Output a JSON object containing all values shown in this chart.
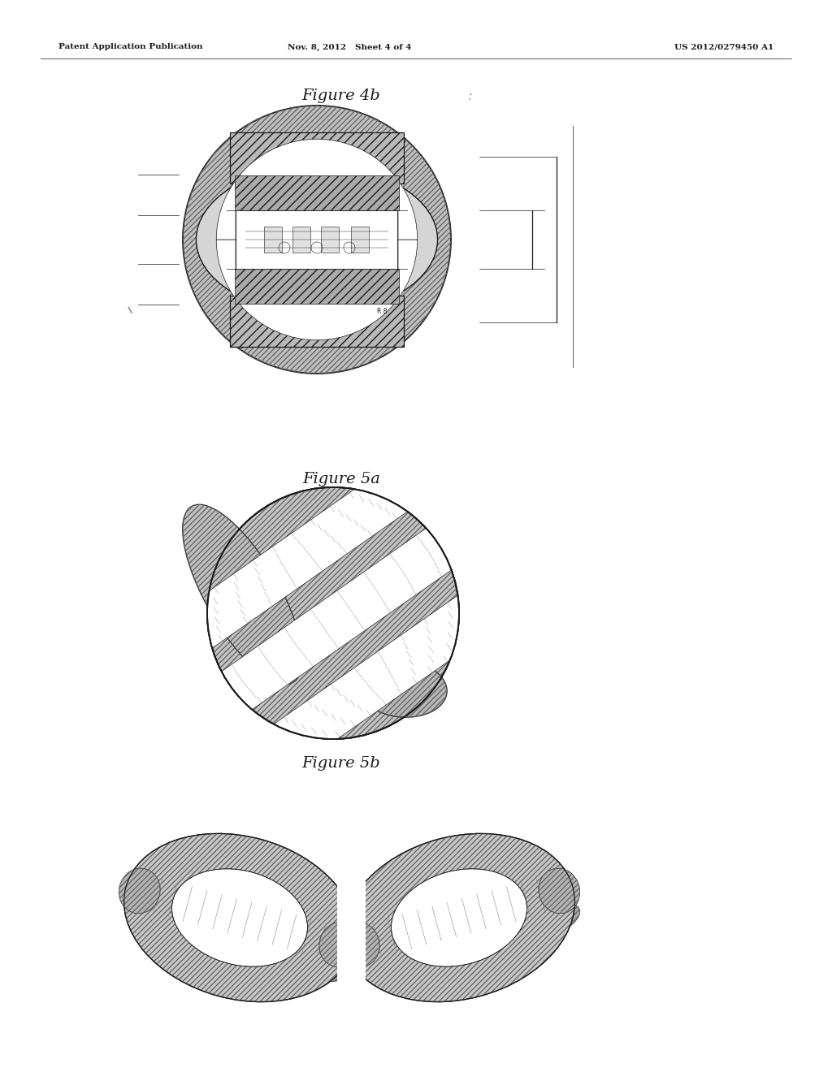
{
  "header_left": "Patent Application Publication",
  "header_mid": "Nov. 8, 2012   Sheet 4 of 4",
  "header_right": "US 2012/0279450 A1",
  "fig4b_title": "Figure 4b",
  "fig5a_title": "Figure 5a",
  "fig5b_title": "Figure 5b",
  "background": "#ffffff",
  "lc": "#1a1a1a",
  "page_width": 10.24,
  "page_height": 13.2
}
